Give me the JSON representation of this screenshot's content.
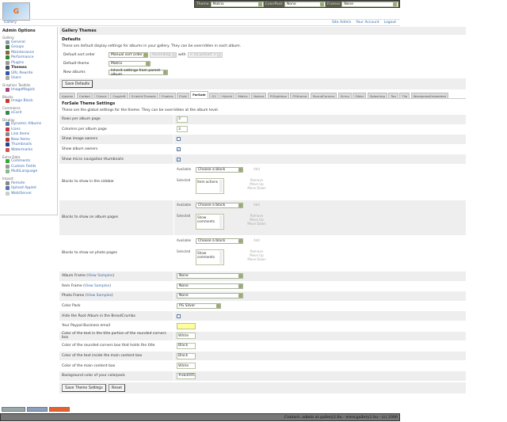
{
  "topbar": {
    "theme_label": "Theme",
    "theme": "Matrix",
    "colorpack_label": "ColorPack",
    "colorpack": "None",
    "frames_label": "Frames",
    "frames": "None"
  },
  "logo": "Gallery",
  "nav": {
    "breadcrumb": "Gallery",
    "links": [
      "Site Admin",
      "Your Account",
      "Logout"
    ]
  },
  "sidebar": {
    "title": "Admin Options",
    "groups": [
      {
        "heading": "Gallery",
        "items": [
          {
            "label": "General",
            "color": "#8899aa"
          },
          {
            "label": "Groups",
            "color": "#3a7a3a"
          },
          {
            "label": "Maintenance",
            "color": "#886644"
          },
          {
            "label": "Performance",
            "color": "#2a8a2a"
          },
          {
            "label": "Plugins",
            "color": "#999999"
          },
          {
            "label": "Themes",
            "color": "#445566",
            "current": true
          },
          {
            "label": "URL Rewrite",
            "color": "#3355aa"
          },
          {
            "label": "Users",
            "color": "#aaaaaa"
          }
        ]
      },
      {
        "heading": "Graphics Toolkits",
        "items": [
          {
            "label": "ImageMagick",
            "color": "#aa4488"
          }
        ]
      },
      {
        "heading": "Blocks",
        "items": [
          {
            "label": "Image Block",
            "color": "#cc3333"
          }
        ]
      },
      {
        "heading": "Commerce",
        "items": [
          {
            "label": "eCard",
            "color": "#338855"
          }
        ]
      },
      {
        "heading": "Display",
        "items": [
          {
            "label": "Dynamic Albums",
            "color": "#5577aa"
          },
          {
            "label": "Icons",
            "color": "#cc3344"
          },
          {
            "label": "Link Items",
            "color": "#888888"
          },
          {
            "label": "New Items",
            "color": "#bb3333"
          },
          {
            "label": "Thumbnails",
            "color": "#224488"
          },
          {
            "label": "Watermarks",
            "color": "#cc5555"
          }
        ]
      },
      {
        "heading": "Extra Data",
        "items": [
          {
            "label": "Comments",
            "color": "#33aa33"
          },
          {
            "label": "Custom Fields",
            "color": "#999999"
          },
          {
            "label": "MultiLanguage",
            "color": "#88bb88"
          }
        ]
      },
      {
        "heading": "Import",
        "items": [
          {
            "label": "Remote",
            "color": "#888888"
          },
          {
            "label": "Upload Applet",
            "color": "#5577aa"
          },
          {
            "label": "Web/Server",
            "color": "#cccccc"
          }
        ]
      }
    ]
  },
  "main": {
    "title": "Gallery Themes",
    "defaults": {
      "heading": "Defaults",
      "description": "These are default display settings for albums in your gallery. They can be overridden in each album.",
      "sort_label": "Default sort order",
      "sort": "Manual sort order",
      "direction": "Ascending",
      "with_label": "with",
      "presort": "< no presort >",
      "theme_label": "Default theme",
      "theme": "Matrix",
      "new_label": "New albums",
      "new": "Inherit settings from parent album",
      "save": "Save Defaults"
    },
    "tabs": [
      "Ajaxian",
      "Carbon",
      "Classic",
      "Copyleft",
      "EclecticThreads",
      "Floatrix",
      "Fluid",
      "ForSale",
      "G1",
      "Hybrid",
      "Matrix",
      "Nature",
      "PGlightbox",
      "PGtheme",
      "RoundCorners",
      "Siriux",
      "Slider",
      "Splashing",
      "Tea",
      "Tile",
      "WordpressEmbedded"
    ],
    "active_tab": "ForSale",
    "settings": {
      "heading": "ForSale Theme Settings",
      "description": "These are the global settings for the theme. They can be overridden at the album level.",
      "rows_label": "Rows per album page",
      "rows": "3",
      "cols_label": "Columns per album page",
      "cols": "3",
      "image_owners_label": "Show image owners",
      "image_owners": false,
      "album_owners_label": "Show album owners",
      "album_owners": true,
      "micro_label": "Show micro navigation thumbnails",
      "micro": true,
      "blocks": [
        {
          "label": "Blocks to show in the sidebar",
          "selected": "Item actions"
        },
        {
          "label": "Blocks to show on album pages",
          "selected": "Show comments"
        },
        {
          "label": "Blocks to show on photo pages",
          "selected": "Show comments"
        }
      ],
      "available_label": "Available",
      "selected_label": "Selected",
      "choose": "Choose a block",
      "add": "Add",
      "remove": "Remove",
      "move_up": "Move Up",
      "move_down": "Move Down",
      "album_frame_label": "Album Frame",
      "item_frame_label": "Item Frame",
      "photo_frame_label": "Photo Frame",
      "view_samples": "View Samples",
      "album_frame": "None",
      "item_frame": "None",
      "photo_frame": "None",
      "colorpack_label": "Color Pack",
      "colorpack": "PG Silver",
      "hide_root_label": "Hide the Root Album in the BreadCrumbs",
      "hide_root": false,
      "paypal_label": "Your Paypal Business email",
      "paypal": "",
      "c1_label": "Color of the text in the title portion of the rounded corners box",
      "c1": "White",
      "c2_label": "Color of the rounded corners box that holds the title",
      "c2": "Black",
      "c3_label": "Color of the text inside the main content box",
      "c3": "Black",
      "c4_label": "Color of the main content box",
      "c4": "White",
      "c5_label": "Background color of your colorpack",
      "c5": "#ebd095",
      "save": "Save Theme Settings",
      "reset": "Reset"
    }
  },
  "footer": "Contact: admin at gallery2.hu - www.gallery2.hu - (c) 2006"
}
